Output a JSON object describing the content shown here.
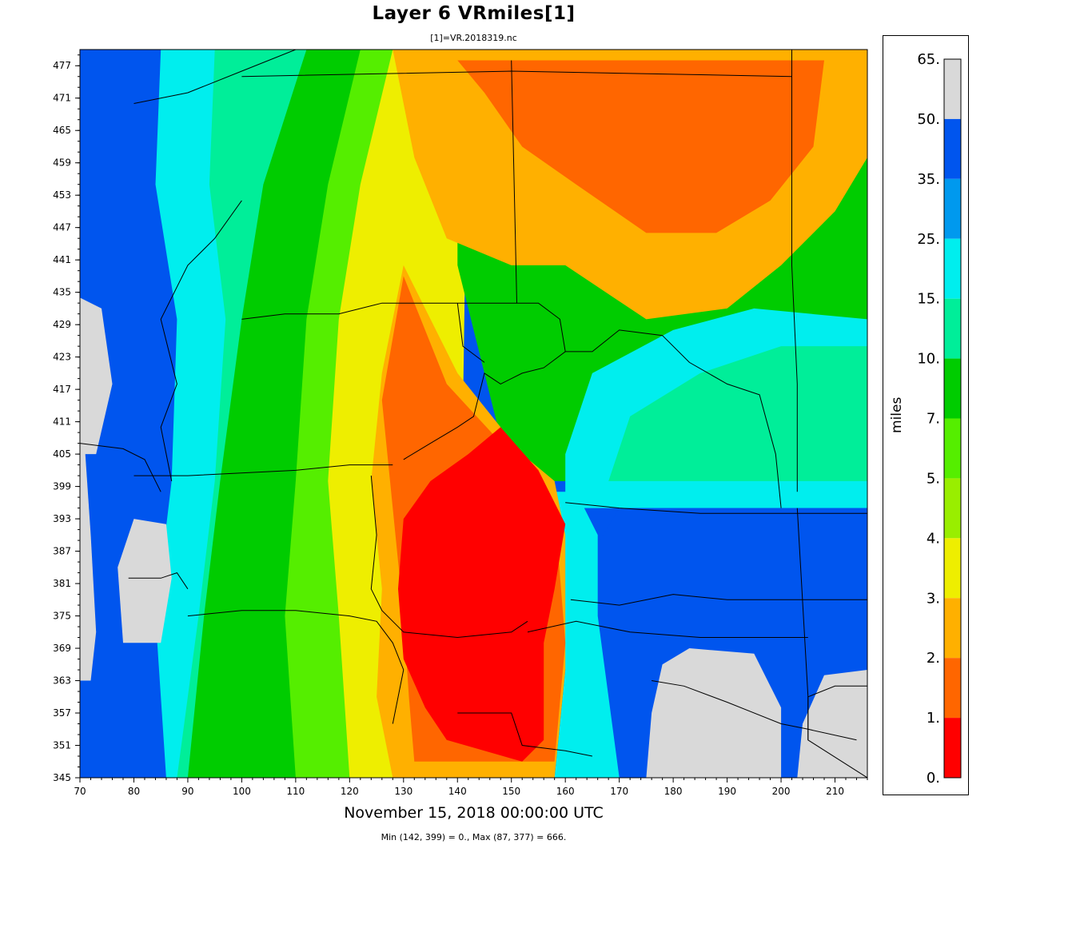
{
  "title": "Layer 6 VRmiles[1]",
  "subtitle": "[1]=VR.2018319.nc",
  "timestamp": "November 15, 2018 00:00:00 UTC",
  "stats": "Min (142, 399) = 0., Max (87, 377) = 666.",
  "colorbar": {
    "unit": "miles",
    "labels": [
      "65.",
      "50.",
      "35.",
      "25.",
      "15.",
      "10.",
      "7.",
      "5.",
      "4.",
      "3.",
      "2.",
      "1.",
      "0."
    ],
    "colors": [
      "#d9d9d9",
      "#0055ee",
      "#0099ee",
      "#00eeee",
      "#00ee99",
      "#00cc00",
      "#55ee00",
      "#99ee00",
      "#eeee00",
      "#ffb000",
      "#ff6600",
      "#ff0000"
    ]
  },
  "chart_data": {
    "type": "heatmap",
    "title": "Layer 6 VRmiles[1]",
    "subtitle": "[1]=VR.2018319.nc",
    "xlabel": "",
    "ylabel": "",
    "xlim": [
      70,
      216
    ],
    "ylim": [
      345,
      480
    ],
    "x_ticks": [
      "70",
      "80",
      "90",
      "100",
      "110",
      "120",
      "130",
      "140",
      "150",
      "160",
      "170",
      "180",
      "190",
      "200",
      "210"
    ],
    "y_ticks": [
      "345",
      "351",
      "357",
      "363",
      "369",
      "375",
      "381",
      "387",
      "393",
      "399",
      "405",
      "411",
      "417",
      "423",
      "429",
      "435",
      "441",
      "447",
      "453",
      "459",
      "465",
      "471",
      "477"
    ],
    "colorbar_boundaries": [
      0,
      1,
      2,
      3,
      4,
      5,
      7,
      10,
      15,
      25,
      35,
      50,
      65
    ],
    "colorbar_unit": "miles",
    "min": {
      "x": 142,
      "y": 399,
      "value": 0
    },
    "max": {
      "x": 87,
      "y": 377,
      "value": 666
    }
  }
}
